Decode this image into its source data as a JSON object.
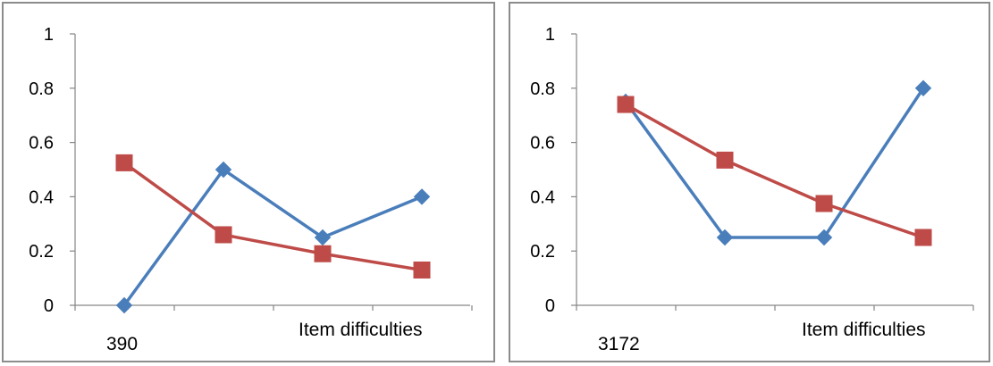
{
  "colors": {
    "series_a": "#4a7ebb",
    "series_b": "#be4b48",
    "axis": "#868686"
  },
  "chart_data": [
    {
      "type": "line",
      "x": [
        1,
        2,
        3,
        4
      ],
      "ylim": [
        0,
        1
      ],
      "yticks": [
        "0",
        "0.2",
        "0.4",
        "0.6",
        "0.8",
        "1"
      ],
      "grid": false,
      "legend": "none",
      "xlabel": "Item difficulties",
      "category_label": "390",
      "series": [
        {
          "marker": "diamond",
          "color": "#4a7ebb",
          "values": [
            0,
            0.5,
            0.25,
            0.4
          ]
        },
        {
          "marker": "square",
          "color": "#be4b48",
          "values": [
            0.525,
            0.26,
            0.19,
            0.13
          ]
        }
      ]
    },
    {
      "type": "line",
      "x": [
        1,
        2,
        3,
        4
      ],
      "ylim": [
        0,
        1
      ],
      "yticks": [
        "0",
        "0.2",
        "0.4",
        "0.6",
        "0.8",
        "1"
      ],
      "grid": false,
      "legend": "none",
      "xlabel": "Item difficulties",
      "category_label": "3172",
      "series": [
        {
          "marker": "diamond",
          "color": "#4a7ebb",
          "values": [
            0.75,
            0.25,
            0.25,
            0.8
          ]
        },
        {
          "marker": "square",
          "color": "#be4b48",
          "values": [
            0.74,
            0.535,
            0.375,
            0.25
          ]
        }
      ]
    }
  ]
}
